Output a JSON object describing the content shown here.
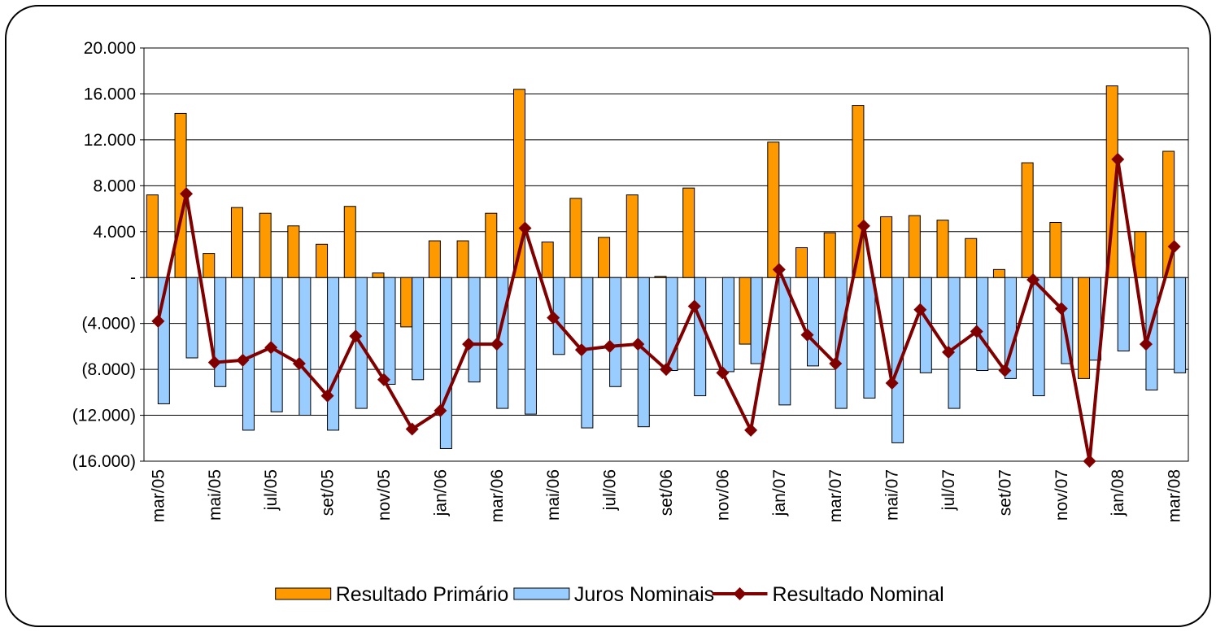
{
  "chart_data": {
    "type": "bar-line",
    "categories": [
      "mar/05",
      null,
      "mai/05",
      null,
      "jul/05",
      null,
      "set/05",
      null,
      "nov/05",
      null,
      "jan/06",
      null,
      "mar/06",
      null,
      "mai/06",
      null,
      "jul/06",
      null,
      "set/06",
      null,
      "nov/06",
      null,
      "jan/07",
      null,
      "mar/07",
      null,
      "mai/07",
      null,
      "jul/07",
      null,
      "set/07",
      null,
      "nov/07",
      null,
      "jan/08",
      null,
      "mar/08"
    ],
    "series": [
      {
        "name": "Resultado Primário",
        "type": "bar",
        "color": "#ff9900",
        "values": [
          7200,
          14300,
          2100,
          6100,
          5600,
          4500,
          2900,
          6200,
          400,
          -4300,
          3200,
          3200,
          5600,
          16400,
          3100,
          6900,
          3500,
          7200,
          100,
          7800,
          0,
          -5800,
          11800,
          2600,
          3900,
          15000,
          5300,
          5400,
          5000,
          3400,
          700,
          10000,
          4800,
          -8800,
          16700,
          4000,
          11000
        ]
      },
      {
        "name": "Juros Nominais",
        "type": "bar",
        "color": "#99ccff",
        "values": [
          -11000,
          -7000,
          -9500,
          -13300,
          -11700,
          -12000,
          -13300,
          -11400,
          -9300,
          -8900,
          -14900,
          -9100,
          -11400,
          -11900,
          -6700,
          -13100,
          -9500,
          -13000,
          -8100,
          -10300,
          -8200,
          -7500,
          -11100,
          -7700,
          -11400,
          -10500,
          -14400,
          -8300,
          -11400,
          -8100,
          -8800,
          -10300,
          -7500,
          -7200,
          -6400,
          -9800,
          -8300
        ]
      },
      {
        "name": "Resultado Nominal",
        "type": "line",
        "color": "#800000",
        "values": [
          -3800,
          7300,
          -7400,
          -7200,
          -6100,
          -7500,
          -10300,
          -5100,
          -8900,
          -13200,
          -11600,
          -5800,
          -5800,
          4300,
          -3500,
          -6300,
          -6000,
          -5800,
          -8000,
          -2500,
          -8300,
          -13300,
          700,
          -5000,
          -7500,
          4500,
          -9200,
          -2800,
          -6500,
          -4700,
          -8100,
          -200,
          -2700,
          -16000,
          10300,
          -5800,
          2700
        ]
      }
    ],
    "ylim": [
      -16000,
      20000
    ],
    "yticks": [
      {
        "value": -16000,
        "label": "(16.000)"
      },
      {
        "value": -12000,
        "label": "(12.000)"
      },
      {
        "value": -8000,
        "label": "(8.000)"
      },
      {
        "value": -4000,
        "label": "(4.000)"
      },
      {
        "value": 0,
        "label": "-"
      },
      {
        "value": 4000,
        "label": "4.000"
      },
      {
        "value": 8000,
        "label": "8.000"
      },
      {
        "value": 12000,
        "label": "12.000"
      },
      {
        "value": 16000,
        "label": "16.000"
      },
      {
        "value": 20000,
        "label": "20.000"
      }
    ],
    "grid": true,
    "legend": "bottom"
  }
}
